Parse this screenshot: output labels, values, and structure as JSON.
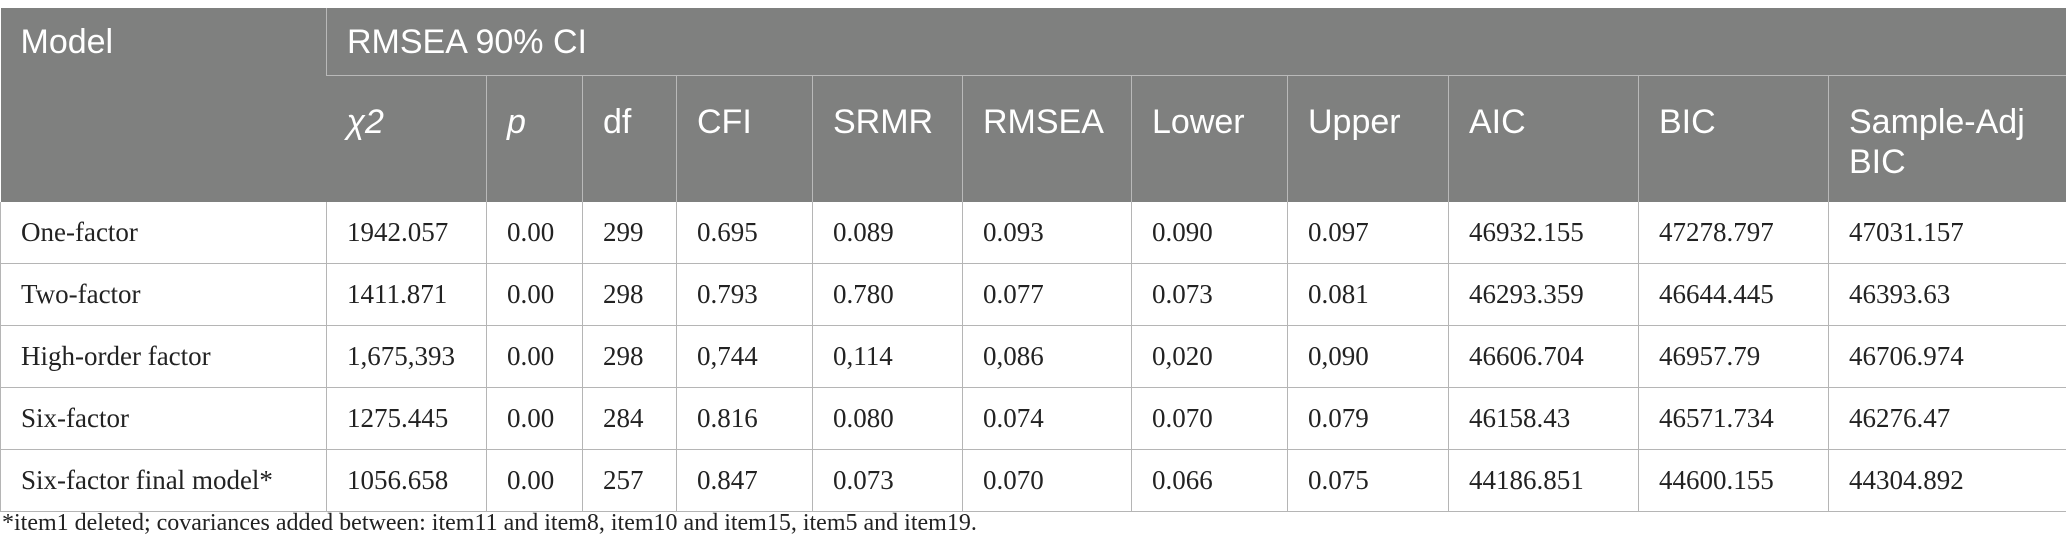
{
  "header": {
    "model": "Model",
    "group": "RMSEA 90% CI",
    "columns": [
      "χ2",
      "p",
      "df",
      "CFI",
      "SRMR",
      "RMSEA",
      "Lower",
      "Upper",
      "AIC",
      "BIC",
      "Sample-Adj BIC"
    ]
  },
  "rows": [
    {
      "model": "One-factor",
      "chi2": "1942.057",
      "p": "0.00",
      "df": "299",
      "cfi": "0.695",
      "srmr": "0.089",
      "rmsea": "0.093",
      "lower": "0.090",
      "upper": "0.097",
      "aic": "46932.155",
      "bic": "47278.797",
      "sabic": "47031.157"
    },
    {
      "model": "Two-factor",
      "chi2": "1411.871",
      "p": "0.00",
      "df": "298",
      "cfi": "0.793",
      "srmr": "0.780",
      "rmsea": "0.077",
      "lower": "0.073",
      "upper": "0.081",
      "aic": "46293.359",
      "bic": "46644.445",
      "sabic": "46393.63"
    },
    {
      "model": "High-order factor",
      "chi2": "1,675,393",
      "p": "0.00",
      "df": "298",
      "cfi": "0,744",
      "srmr": "0,114",
      "rmsea": "0,086",
      "lower": "0,020",
      "upper": "0,090",
      "aic": "46606.704",
      "bic": "46957.79",
      "sabic": "46706.974"
    },
    {
      "model": "Six-factor",
      "chi2": "1275.445",
      "p": "0.00",
      "df": "284",
      "cfi": "0.816",
      "srmr": "0.080",
      "rmsea": "0.074",
      "lower": "0.070",
      "upper": "0.079",
      "aic": "46158.43",
      "bic": "46571.734",
      "sabic": "46276.47"
    },
    {
      "model": "Six-factor final model*",
      "chi2": "1056.658",
      "p": "0.00",
      "df": "257",
      "cfi": "0.847",
      "srmr": "0.073",
      "rmsea": "0.070",
      "lower": "0.066",
      "upper": "0.075",
      "aic": "44186.851",
      "bic": "44600.155",
      "sabic": "44304.892"
    }
  ],
  "footnote": "*item1 deleted; covariances added between: item11 and item8, item10 and item15, item5 and item19."
}
